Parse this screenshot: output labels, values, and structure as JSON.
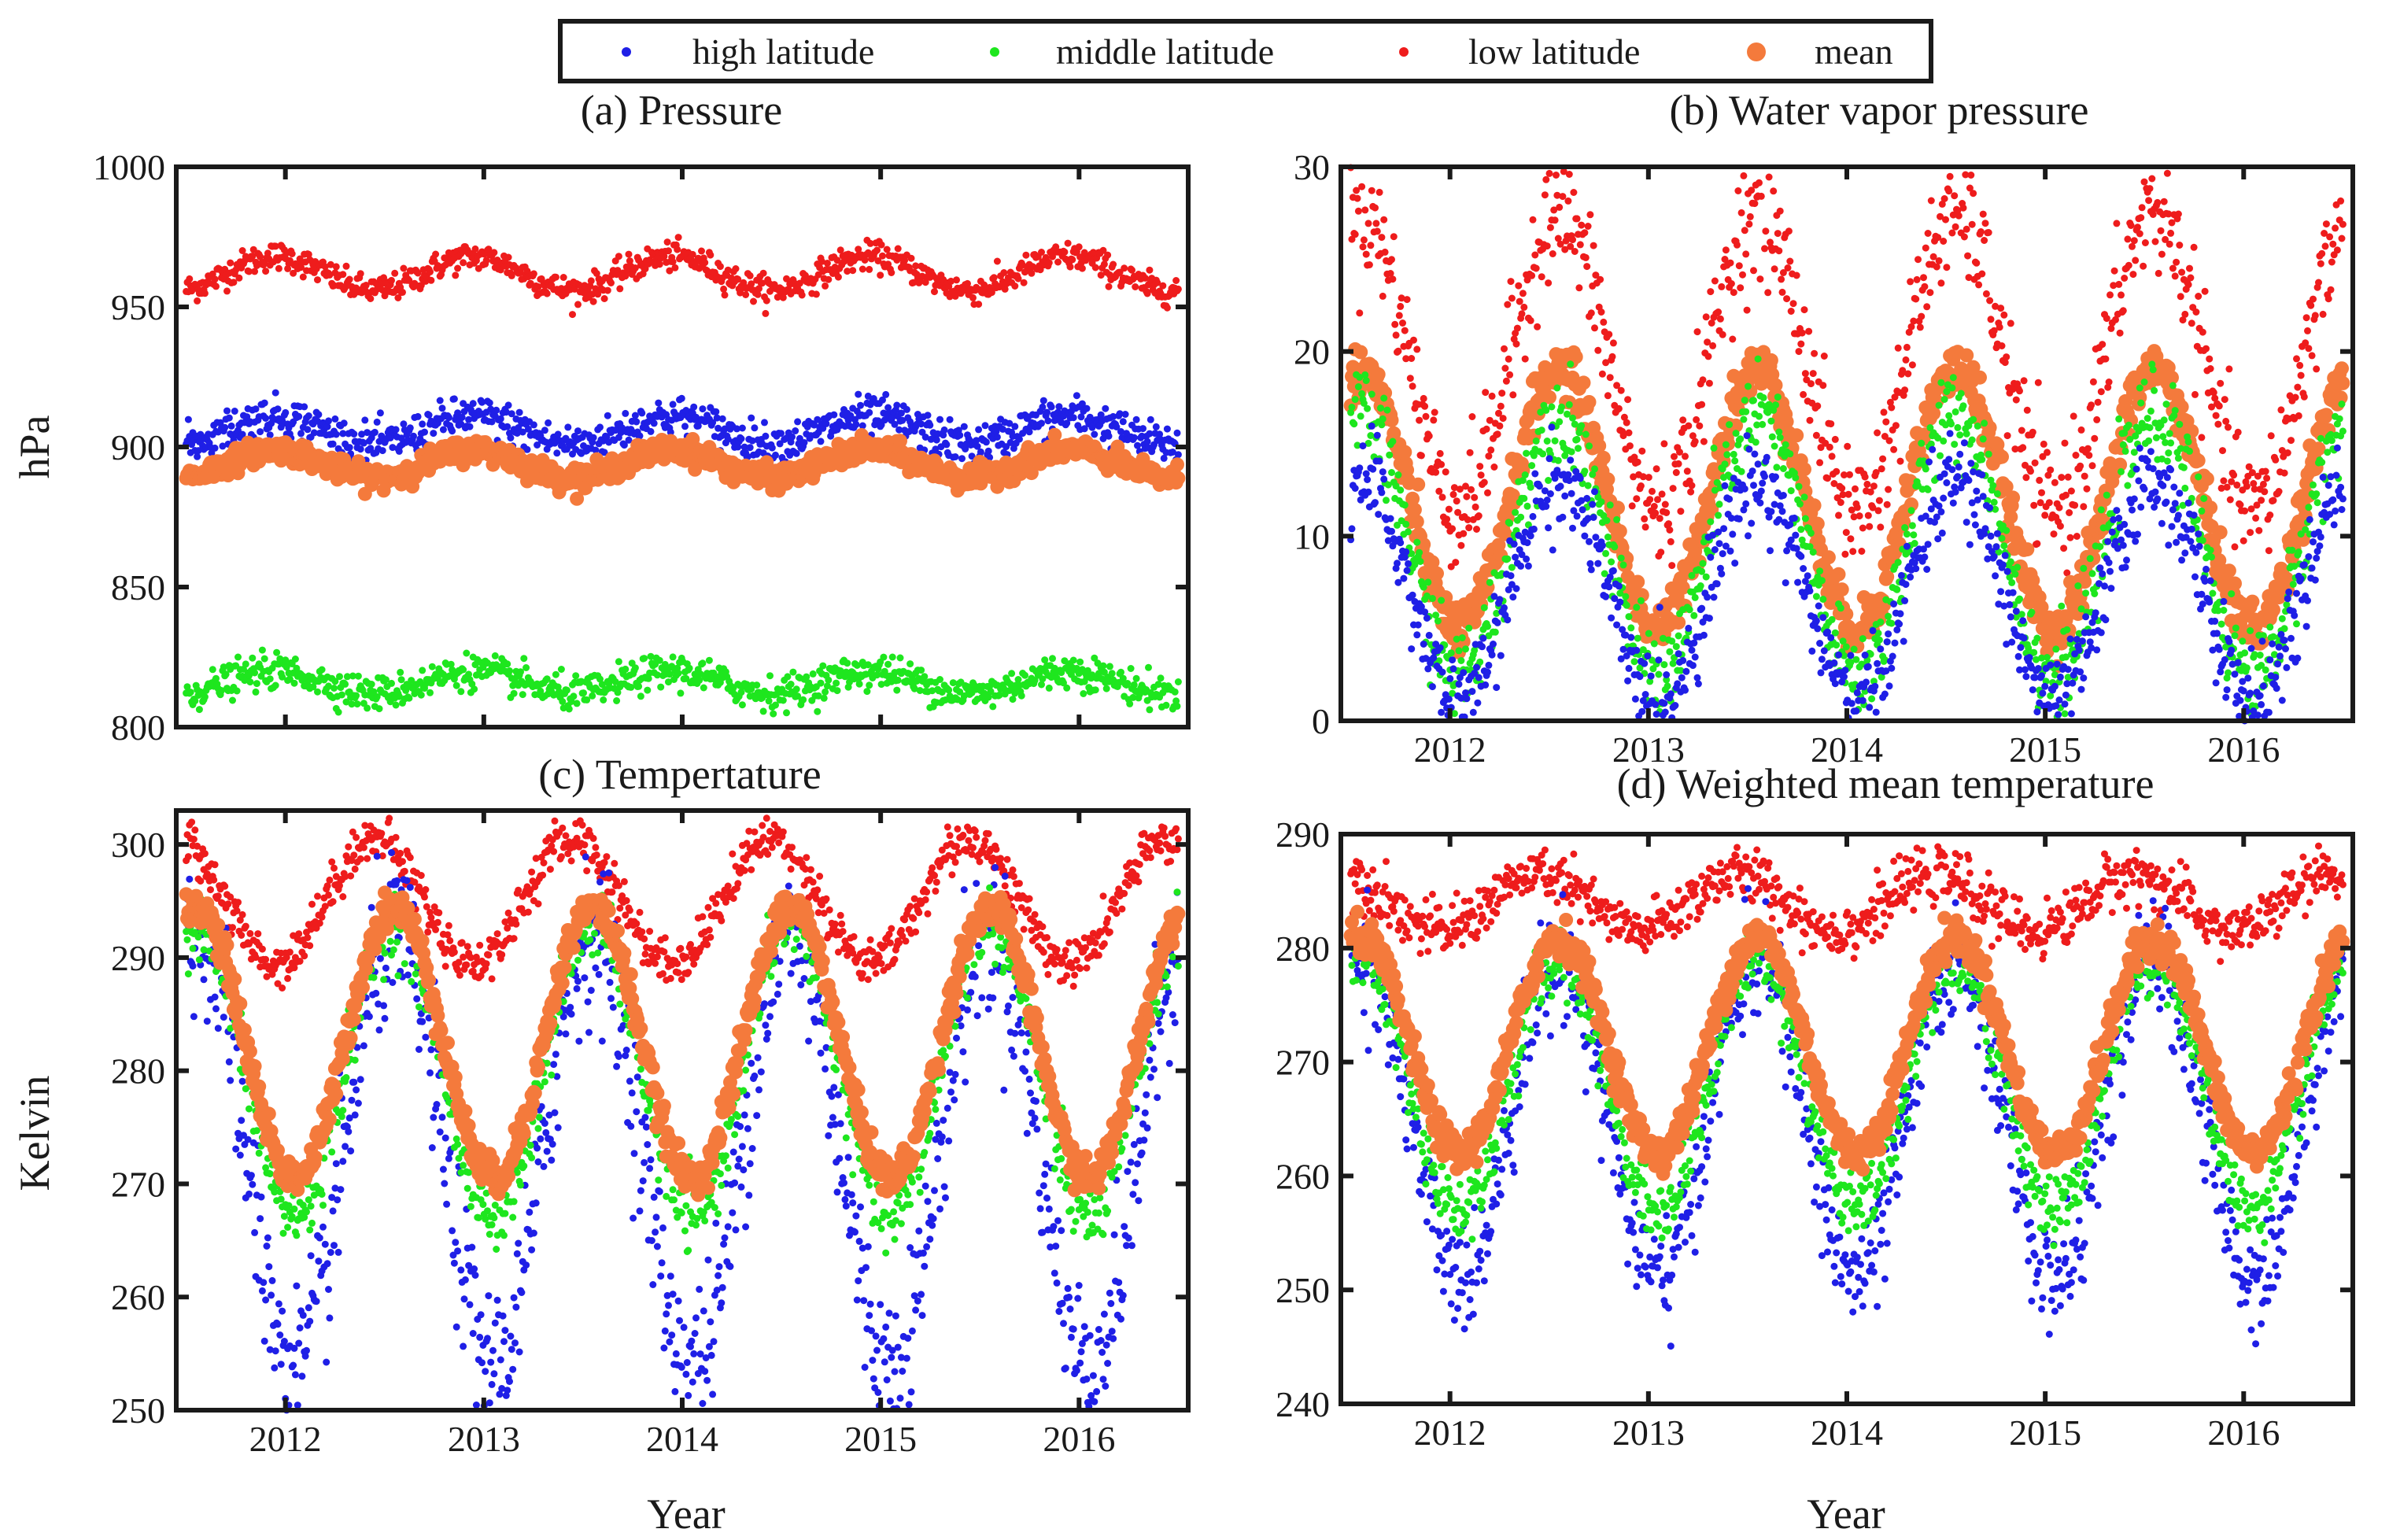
{
  "legend": {
    "items": [
      {
        "key": "high",
        "label": "high latitude",
        "color": "#1f1fe6"
      },
      {
        "key": "mid",
        "label": "middle latitude",
        "color": "#1ee61e"
      },
      {
        "key": "low",
        "label": "low latitude",
        "color": "#ee1c1c"
      },
      {
        "key": "mean",
        "label": "mean",
        "color": "#f47a3c"
      }
    ]
  },
  "chart_data": [
    {
      "id": "a",
      "type": "scatter",
      "title": "(a) Pressure",
      "xlabel": "",
      "ylabel": "hPa",
      "xlim": [
        2011.45,
        2016.55
      ],
      "ylim": [
        800,
        1000
      ],
      "xticks": [
        2012,
        2013,
        2014,
        2015,
        2016
      ],
      "xticklabels": [
        "",
        "",
        "",
        "",
        ""
      ],
      "yticks": [
        800,
        850,
        900,
        950,
        1000
      ],
      "yticklabels": [
        "800",
        "850",
        "900",
        "950",
        "1000"
      ],
      "series": [
        {
          "name": "low latitude",
          "key": "low",
          "mean_value": 962,
          "amplitude": 6,
          "peak_year_fraction": 0.95,
          "noise": 2.5
        },
        {
          "name": "high latitude",
          "key": "high",
          "mean_value": 906,
          "amplitude": 5,
          "peak_year_fraction": 0.95,
          "noise": 3.5
        },
        {
          "name": "mean",
          "key": "mean",
          "mean_value": 894,
          "amplitude": 5,
          "peak_year_fraction": 0.95,
          "noise": 2
        },
        {
          "name": "middle latitude",
          "key": "mid",
          "mean_value": 816,
          "amplitude": 4,
          "peak_year_fraction": 0.95,
          "noise": 3
        }
      ]
    },
    {
      "id": "b",
      "type": "scatter",
      "title": "(b) Water vapor pressure",
      "xlabel": "",
      "ylabel": "",
      "xlim": [
        2011.45,
        2016.55
      ],
      "ylim": [
        0,
        30
      ],
      "xticks": [
        2012,
        2013,
        2014,
        2015,
        2016
      ],
      "xticklabels": [
        "2012",
        "2013",
        "2014",
        "2015",
        "2016"
      ],
      "yticks": [
        0,
        10,
        20,
        30
      ],
      "yticklabels": [
        "0",
        "10",
        "20",
        "30"
      ],
      "series": [
        {
          "name": "low latitude",
          "key": "low",
          "mean_value": 19.5,
          "amplitude": 8,
          "peak_year_fraction": 0.55,
          "noise": 1.6
        },
        {
          "name": "mean",
          "key": "mean",
          "mean_value": 12,
          "amplitude": 7,
          "peak_year_fraction": 0.55,
          "noise": 0.7
        },
        {
          "name": "middle latitude",
          "key": "mid",
          "mean_value": 9.5,
          "amplitude": 7,
          "peak_year_fraction": 0.55,
          "noise": 1.2
        },
        {
          "name": "high latitude",
          "key": "high",
          "mean_value": 7,
          "amplitude": 6,
          "peak_year_fraction": 0.55,
          "noise": 1.2
        }
      ]
    },
    {
      "id": "c",
      "type": "scatter",
      "title": "(c) Tempertature",
      "xlabel": "Year",
      "ylabel": "Kelvin",
      "xlim": [
        2011.45,
        2016.55
      ],
      "ylim": [
        250,
        303
      ],
      "xticks": [
        2012,
        2013,
        2014,
        2015,
        2016
      ],
      "xticklabels": [
        "2012",
        "2013",
        "2014",
        "2015",
        "2016"
      ],
      "yticks": [
        250,
        260,
        270,
        280,
        290,
        300
      ],
      "yticklabels": [
        "250",
        "260",
        "270",
        "280",
        "290",
        "300"
      ],
      "series": [
        {
          "name": "low latitude",
          "key": "low",
          "mean_value": 295,
          "amplitude": 5.5,
          "peak_year_fraction": 0.45,
          "noise": 1
        },
        {
          "name": "high latitude",
          "key": "high",
          "mean_value": 273,
          "amplitude": 19,
          "peak_year_fraction": 0.55,
          "noise": 3.5
        },
        {
          "name": "middle latitude",
          "key": "mid",
          "mean_value": 280,
          "amplitude": 13,
          "peak_year_fraction": 0.55,
          "noise": 1.5
        },
        {
          "name": "mean",
          "key": "mean",
          "mean_value": 282.5,
          "amplitude": 12,
          "peak_year_fraction": 0.55,
          "noise": 0.8
        }
      ]
    },
    {
      "id": "d",
      "type": "scatter",
      "title": "(d) Weighted mean temperature",
      "xlabel": "Year",
      "ylabel": "",
      "xlim": [
        2011.45,
        2016.55
      ],
      "ylim": [
        240,
        290
      ],
      "xticks": [
        2012,
        2013,
        2014,
        2015,
        2016
      ],
      "xticklabels": [
        "2012",
        "2013",
        "2014",
        "2015",
        "2016"
      ],
      "yticks": [
        240,
        250,
        260,
        270,
        280,
        290
      ],
      "yticklabels": [
        "240",
        "250",
        "260",
        "270",
        "280",
        "290"
      ],
      "series": [
        {
          "name": "low latitude",
          "key": "low",
          "mean_value": 284,
          "amplitude": 2.5,
          "peak_year_fraction": 0.45,
          "noise": 1.2
        },
        {
          "name": "high latitude",
          "key": "high",
          "mean_value": 265,
          "amplitude": 14,
          "peak_year_fraction": 0.55,
          "noise": 2.5
        },
        {
          "name": "middle latitude",
          "key": "mid",
          "mean_value": 268,
          "amplitude": 11,
          "peak_year_fraction": 0.55,
          "noise": 1.5
        },
        {
          "name": "mean",
          "key": "mean",
          "mean_value": 271.5,
          "amplitude": 9.5,
          "peak_year_fraction": 0.55,
          "noise": 0.8
        }
      ]
    }
  ]
}
